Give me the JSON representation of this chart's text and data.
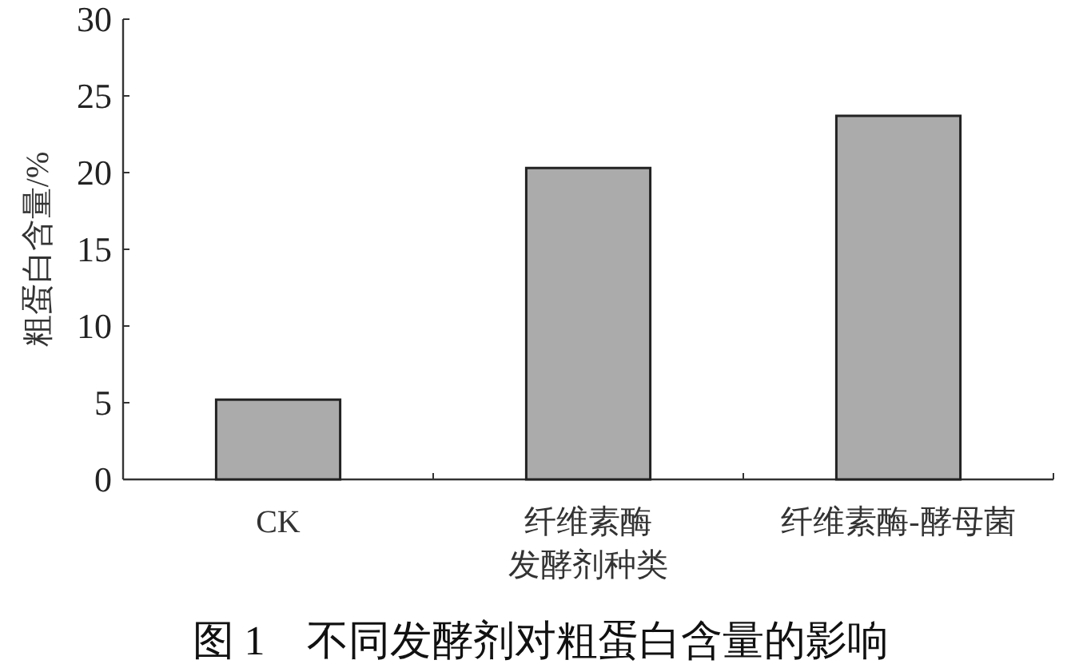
{
  "chart_data": {
    "type": "bar",
    "title": "图 1　不同发酵剂对粗蛋白含量的影响",
    "xlabel": "发酵剂种类",
    "ylabel": "粗蛋白含量/%",
    "categories": [
      "CK",
      "纤维素酶",
      "纤维素酶-酵母菌"
    ],
    "values": [
      5.2,
      20.3,
      23.7
    ],
    "color": "#ababab",
    "ylim": [
      0,
      30
    ],
    "yticks": [
      0,
      5,
      10,
      15,
      20,
      25,
      30
    ]
  }
}
